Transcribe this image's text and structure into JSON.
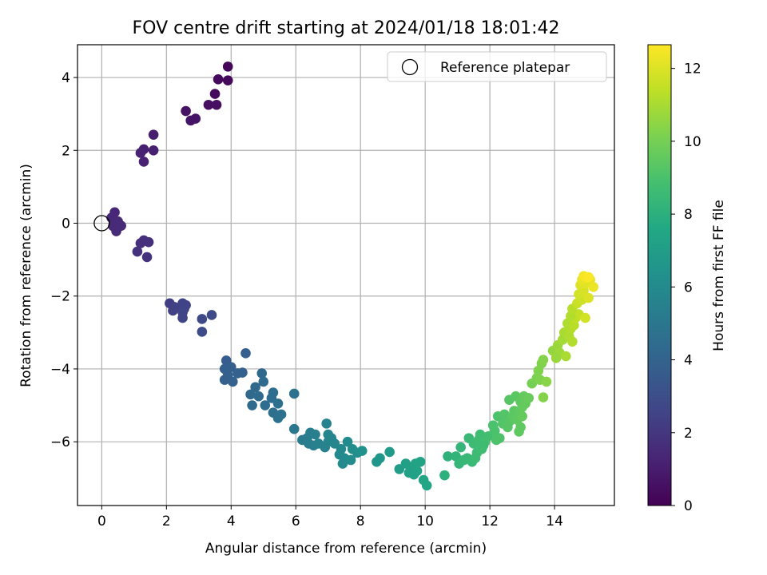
{
  "chart_data": {
    "type": "scatter",
    "title": "FOV centre drift starting at 2024/01/18 18:01:42",
    "xlabel": "Angular distance from reference (arcmin)",
    "ylabel": "Rotation from reference (arcmin)",
    "xlim": [
      -0.75,
      15.85
    ],
    "ylim": [
      -7.75,
      4.9
    ],
    "xticks": [
      0,
      2,
      4,
      6,
      8,
      10,
      12,
      14
    ],
    "yticks": [
      -6,
      -4,
      -2,
      0,
      2,
      4
    ],
    "grid": true,
    "legend": {
      "position": "top-right",
      "entries": [
        "Reference platepar"
      ]
    },
    "reference_point": {
      "x": 0,
      "y": 0,
      "label": "Reference platepar"
    },
    "colorbar": {
      "label": "Hours from first FF file",
      "colormap": "viridis",
      "range": [
        0,
        12.65
      ],
      "ticks": [
        0,
        2,
        4,
        6,
        8,
        10,
        12
      ]
    },
    "points": [
      {
        "x": 3.9,
        "y": 4.3,
        "h": 0.2
      },
      {
        "x": 3.6,
        "y": 3.95,
        "h": 0.3
      },
      {
        "x": 3.9,
        "y": 3.92,
        "h": 0.3
      },
      {
        "x": 3.5,
        "y": 3.55,
        "h": 0.4
      },
      {
        "x": 3.3,
        "y": 3.25,
        "h": 0.5
      },
      {
        "x": 3.55,
        "y": 3.25,
        "h": 0.5
      },
      {
        "x": 2.6,
        "y": 3.08,
        "h": 0.6
      },
      {
        "x": 2.75,
        "y": 2.82,
        "h": 0.7
      },
      {
        "x": 2.9,
        "y": 2.87,
        "h": 0.7
      },
      {
        "x": 1.6,
        "y": 2.43,
        "h": 1.0
      },
      {
        "x": 1.3,
        "y": 2.03,
        "h": 1.1
      },
      {
        "x": 1.6,
        "y": 2.0,
        "h": 1.1
      },
      {
        "x": 1.2,
        "y": 1.93,
        "h": 1.2
      },
      {
        "x": 1.3,
        "y": 1.69,
        "h": 1.2
      },
      {
        "x": 0.4,
        "y": 0.3,
        "h": 1.4
      },
      {
        "x": 0.3,
        "y": 0.15,
        "h": 1.4
      },
      {
        "x": 0.5,
        "y": 0.05,
        "h": 1.5
      },
      {
        "x": 0.6,
        "y": -0.07,
        "h": 1.5
      },
      {
        "x": 0.35,
        "y": -0.08,
        "h": 1.5
      },
      {
        "x": 0.45,
        "y": -0.22,
        "h": 1.5
      },
      {
        "x": 1.3,
        "y": -0.47,
        "h": 1.7
      },
      {
        "x": 1.2,
        "y": -0.55,
        "h": 1.7
      },
      {
        "x": 1.45,
        "y": -0.52,
        "h": 1.7
      },
      {
        "x": 1.1,
        "y": -0.78,
        "h": 1.8
      },
      {
        "x": 1.4,
        "y": -0.93,
        "h": 1.8
      },
      {
        "x": 2.1,
        "y": -2.2,
        "h": 2.3
      },
      {
        "x": 2.25,
        "y": -2.3,
        "h": 2.4
      },
      {
        "x": 2.2,
        "y": -2.4,
        "h": 2.4
      },
      {
        "x": 2.5,
        "y": -2.2,
        "h": 2.5
      },
      {
        "x": 2.6,
        "y": -2.25,
        "h": 2.5
      },
      {
        "x": 2.55,
        "y": -2.35,
        "h": 2.5
      },
      {
        "x": 2.5,
        "y": -2.45,
        "h": 2.6
      },
      {
        "x": 2.5,
        "y": -2.6,
        "h": 2.6
      },
      {
        "x": 3.1,
        "y": -2.63,
        "h": 2.8
      },
      {
        "x": 3.4,
        "y": -2.52,
        "h": 2.9
      },
      {
        "x": 3.1,
        "y": -2.98,
        "h": 2.9
      },
      {
        "x": 4.45,
        "y": -3.57,
        "h": 3.8
      },
      {
        "x": 3.85,
        "y": -3.77,
        "h": 3.7
      },
      {
        "x": 3.8,
        "y": -4.0,
        "h": 3.8
      },
      {
        "x": 4.0,
        "y": -3.95,
        "h": 3.8
      },
      {
        "x": 4.2,
        "y": -4.12,
        "h": 3.9
      },
      {
        "x": 4.35,
        "y": -4.1,
        "h": 3.9
      },
      {
        "x": 3.8,
        "y": -4.3,
        "h": 3.8
      },
      {
        "x": 4.05,
        "y": -4.35,
        "h": 3.9
      },
      {
        "x": 3.9,
        "y": -4.17,
        "h": 3.8
      },
      {
        "x": 4.95,
        "y": -4.12,
        "h": 4.3
      },
      {
        "x": 5.0,
        "y": -4.35,
        "h": 4.4
      },
      {
        "x": 4.75,
        "y": -4.5,
        "h": 4.3
      },
      {
        "x": 4.6,
        "y": -4.7,
        "h": 4.3
      },
      {
        "x": 4.85,
        "y": -4.75,
        "h": 4.4
      },
      {
        "x": 5.3,
        "y": -4.65,
        "h": 4.5
      },
      {
        "x": 5.25,
        "y": -4.8,
        "h": 4.5
      },
      {
        "x": 4.65,
        "y": -5.0,
        "h": 4.4
      },
      {
        "x": 5.05,
        "y": -5.0,
        "h": 4.5
      },
      {
        "x": 5.45,
        "y": -4.95,
        "h": 4.6
      },
      {
        "x": 5.95,
        "y": -4.68,
        "h": 4.7
      },
      {
        "x": 5.3,
        "y": -5.2,
        "h": 4.6
      },
      {
        "x": 5.55,
        "y": -5.25,
        "h": 4.7
      },
      {
        "x": 5.45,
        "y": -5.35,
        "h": 4.7
      },
      {
        "x": 5.95,
        "y": -5.65,
        "h": 5.0
      },
      {
        "x": 6.2,
        "y": -5.95,
        "h": 5.2
      },
      {
        "x": 6.35,
        "y": -5.9,
        "h": 5.2
      },
      {
        "x": 6.45,
        "y": -5.75,
        "h": 5.3
      },
      {
        "x": 6.6,
        "y": -5.8,
        "h": 5.4
      },
      {
        "x": 6.4,
        "y": -6.05,
        "h": 5.3
      },
      {
        "x": 6.55,
        "y": -6.1,
        "h": 5.4
      },
      {
        "x": 6.7,
        "y": -6.05,
        "h": 5.5
      },
      {
        "x": 6.95,
        "y": -5.5,
        "h": 5.6
      },
      {
        "x": 7.0,
        "y": -5.8,
        "h": 5.7
      },
      {
        "x": 7.1,
        "y": -5.9,
        "h": 5.7
      },
      {
        "x": 7.0,
        "y": -6.0,
        "h": 5.7
      },
      {
        "x": 6.9,
        "y": -6.15,
        "h": 5.6
      },
      {
        "x": 7.2,
        "y": -6.05,
        "h": 5.8
      },
      {
        "x": 7.4,
        "y": -6.2,
        "h": 5.9
      },
      {
        "x": 7.35,
        "y": -6.35,
        "h": 5.9
      },
      {
        "x": 7.5,
        "y": -6.45,
        "h": 6.0
      },
      {
        "x": 7.45,
        "y": -6.6,
        "h": 6.0
      },
      {
        "x": 7.6,
        "y": -6.0,
        "h": 6.0
      },
      {
        "x": 7.75,
        "y": -6.2,
        "h": 6.1
      },
      {
        "x": 7.9,
        "y": -6.3,
        "h": 6.2
      },
      {
        "x": 8.05,
        "y": -6.25,
        "h": 6.3
      },
      {
        "x": 7.7,
        "y": -6.5,
        "h": 6.1
      },
      {
        "x": 8.9,
        "y": -6.28,
        "h": 6.8
      },
      {
        "x": 8.6,
        "y": -6.45,
        "h": 6.6
      },
      {
        "x": 8.5,
        "y": -6.55,
        "h": 6.6
      },
      {
        "x": 9.2,
        "y": -6.75,
        "h": 7.0
      },
      {
        "x": 9.4,
        "y": -6.6,
        "h": 7.1
      },
      {
        "x": 9.55,
        "y": -6.7,
        "h": 7.2
      },
      {
        "x": 9.7,
        "y": -6.6,
        "h": 7.3
      },
      {
        "x": 9.85,
        "y": -6.55,
        "h": 7.3
      },
      {
        "x": 9.5,
        "y": -6.85,
        "h": 7.2
      },
      {
        "x": 9.75,
        "y": -6.8,
        "h": 7.3
      },
      {
        "x": 9.65,
        "y": -6.9,
        "h": 7.2
      },
      {
        "x": 9.95,
        "y": -7.05,
        "h": 7.4
      },
      {
        "x": 10.05,
        "y": -7.2,
        "h": 7.5
      },
      {
        "x": 10.6,
        "y": -6.92,
        "h": 8.0
      },
      {
        "x": 10.7,
        "y": -6.4,
        "h": 8.1
      },
      {
        "x": 10.95,
        "y": -6.4,
        "h": 8.2
      },
      {
        "x": 11.1,
        "y": -6.15,
        "h": 8.3
      },
      {
        "x": 11.05,
        "y": -6.6,
        "h": 8.3
      },
      {
        "x": 11.2,
        "y": -6.5,
        "h": 8.4
      },
      {
        "x": 11.3,
        "y": -6.45,
        "h": 8.4
      },
      {
        "x": 11.45,
        "y": -6.55,
        "h": 8.5
      },
      {
        "x": 11.55,
        "y": -6.45,
        "h": 8.6
      },
      {
        "x": 11.6,
        "y": -6.3,
        "h": 8.6
      },
      {
        "x": 11.75,
        "y": -6.2,
        "h": 8.7
      },
      {
        "x": 11.35,
        "y": -5.9,
        "h": 8.5
      },
      {
        "x": 11.5,
        "y": -6.05,
        "h": 8.6
      },
      {
        "x": 11.65,
        "y": -5.95,
        "h": 8.7
      },
      {
        "x": 11.7,
        "y": -5.8,
        "h": 8.7
      },
      {
        "x": 11.85,
        "y": -6.0,
        "h": 8.8
      },
      {
        "x": 11.95,
        "y": -5.85,
        "h": 8.8
      },
      {
        "x": 11.8,
        "y": -6.1,
        "h": 8.7
      },
      {
        "x": 12.1,
        "y": -5.55,
        "h": 9.0
      },
      {
        "x": 12.15,
        "y": -5.7,
        "h": 9.0
      },
      {
        "x": 12.2,
        "y": -5.95,
        "h": 9.1
      },
      {
        "x": 12.3,
        "y": -5.9,
        "h": 9.1
      },
      {
        "x": 12.25,
        "y": -5.3,
        "h": 9.1
      },
      {
        "x": 12.4,
        "y": -5.5,
        "h": 9.2
      },
      {
        "x": 12.45,
        "y": -5.25,
        "h": 9.2
      },
      {
        "x": 12.6,
        "y": -5.45,
        "h": 9.3
      },
      {
        "x": 12.55,
        "y": -5.6,
        "h": 9.3
      },
      {
        "x": 12.7,
        "y": -5.3,
        "h": 9.4
      },
      {
        "x": 12.75,
        "y": -5.15,
        "h": 9.4
      },
      {
        "x": 12.85,
        "y": -5.4,
        "h": 9.5
      },
      {
        "x": 12.9,
        "y": -5.2,
        "h": 9.5
      },
      {
        "x": 13.0,
        "y": -5.05,
        "h": 9.6
      },
      {
        "x": 12.95,
        "y": -5.6,
        "h": 9.5
      },
      {
        "x": 12.9,
        "y": -5.72,
        "h": 9.5
      },
      {
        "x": 12.6,
        "y": -4.85,
        "h": 9.3
      },
      {
        "x": 12.8,
        "y": -4.75,
        "h": 9.4
      },
      {
        "x": 12.95,
        "y": -4.9,
        "h": 9.5
      },
      {
        "x": 13.05,
        "y": -4.75,
        "h": 9.6
      },
      {
        "x": 13.1,
        "y": -4.95,
        "h": 9.6
      },
      {
        "x": 13.0,
        "y": -5.3,
        "h": 9.6
      },
      {
        "x": 13.2,
        "y": -4.8,
        "h": 9.7
      },
      {
        "x": 13.3,
        "y": -4.4,
        "h": 10.0
      },
      {
        "x": 13.45,
        "y": -4.25,
        "h": 10.1
      },
      {
        "x": 13.5,
        "y": -4.05,
        "h": 10.2
      },
      {
        "x": 13.6,
        "y": -3.85,
        "h": 10.2
      },
      {
        "x": 13.55,
        "y": -4.3,
        "h": 10.2
      },
      {
        "x": 13.65,
        "y": -4.78,
        "h": 10.3
      },
      {
        "x": 13.75,
        "y": -4.35,
        "h": 10.4
      },
      {
        "x": 13.65,
        "y": -3.75,
        "h": 10.3
      },
      {
        "x": 13.95,
        "y": -3.5,
        "h": 10.6
      },
      {
        "x": 14.1,
        "y": -3.35,
        "h": 10.7
      },
      {
        "x": 14.15,
        "y": -3.55,
        "h": 10.8
      },
      {
        "x": 14.25,
        "y": -3.2,
        "h": 10.9
      },
      {
        "x": 14.05,
        "y": -3.7,
        "h": 10.7
      },
      {
        "x": 14.35,
        "y": -3.65,
        "h": 11.0
      },
      {
        "x": 14.3,
        "y": -3.0,
        "h": 11.0
      },
      {
        "x": 14.45,
        "y": -3.1,
        "h": 11.1
      },
      {
        "x": 14.5,
        "y": -2.9,
        "h": 11.2
      },
      {
        "x": 14.55,
        "y": -3.25,
        "h": 11.2
      },
      {
        "x": 14.4,
        "y": -2.75,
        "h": 11.1
      },
      {
        "x": 14.6,
        "y": -2.8,
        "h": 11.3
      },
      {
        "x": 14.65,
        "y": -2.6,
        "h": 11.4
      },
      {
        "x": 14.75,
        "y": -2.5,
        "h": 11.5
      },
      {
        "x": 14.5,
        "y": -2.55,
        "h": 11.2
      },
      {
        "x": 14.55,
        "y": -2.35,
        "h": 11.3
      },
      {
        "x": 14.7,
        "y": -2.2,
        "h": 11.6
      },
      {
        "x": 14.85,
        "y": -2.1,
        "h": 11.7
      },
      {
        "x": 14.95,
        "y": -2.6,
        "h": 11.8
      },
      {
        "x": 14.75,
        "y": -1.95,
        "h": 11.8
      },
      {
        "x": 14.9,
        "y": -1.85,
        "h": 11.9
      },
      {
        "x": 15.05,
        "y": -2.05,
        "h": 12.0
      },
      {
        "x": 14.8,
        "y": -1.7,
        "h": 12.0
      },
      {
        "x": 14.95,
        "y": -1.65,
        "h": 12.1
      },
      {
        "x": 15.1,
        "y": -1.55,
        "h": 12.2
      },
      {
        "x": 14.85,
        "y": -1.55,
        "h": 12.2
      },
      {
        "x": 15.2,
        "y": -1.75,
        "h": 12.3
      },
      {
        "x": 15.0,
        "y": -1.5,
        "h": 12.4
      },
      {
        "x": 14.9,
        "y": -1.45,
        "h": 12.5
      },
      {
        "x": 15.05,
        "y": -1.48,
        "h": 12.6
      }
    ]
  }
}
